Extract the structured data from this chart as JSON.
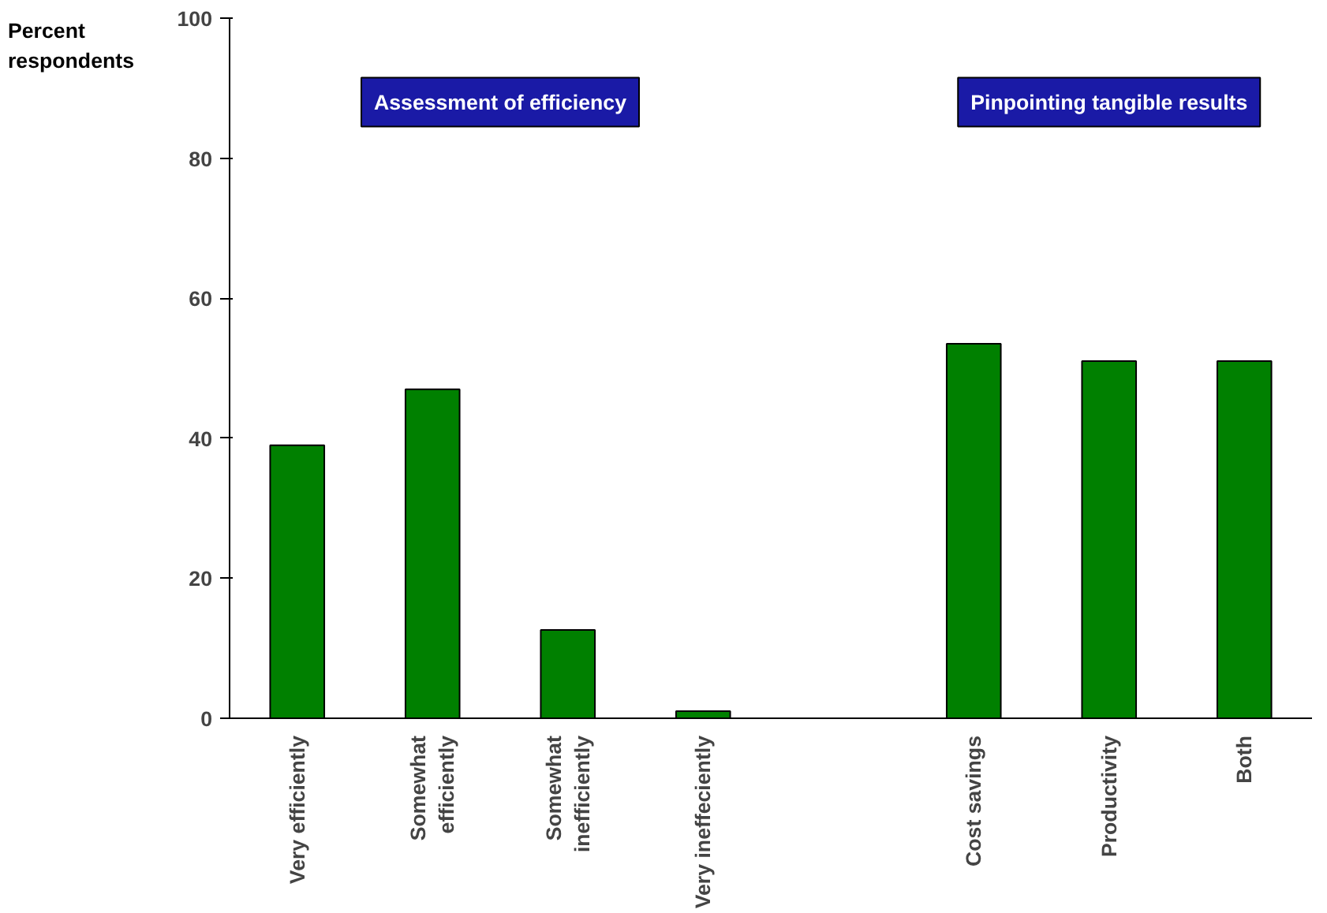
{
  "chart_data": {
    "type": "bar",
    "ylabel": "Percent respondents",
    "categories": [
      "Very efficiently",
      "Somewhat efficiently",
      "Somewhat inefficiently",
      "Very ineffeciently",
      null,
      "Cost savings",
      "Productivity",
      "Both"
    ],
    "values": [
      39,
      47,
      12.6,
      1,
      null,
      53.5,
      51,
      51
    ],
    "color": "#008000",
    "ylim": [
      0,
      100
    ],
    "yticks": [
      0,
      20,
      40,
      60,
      80,
      100
    ],
    "grid": false,
    "annotations": [
      "Assessment of efficiency",
      "Pinpointing tangible results"
    ]
  }
}
